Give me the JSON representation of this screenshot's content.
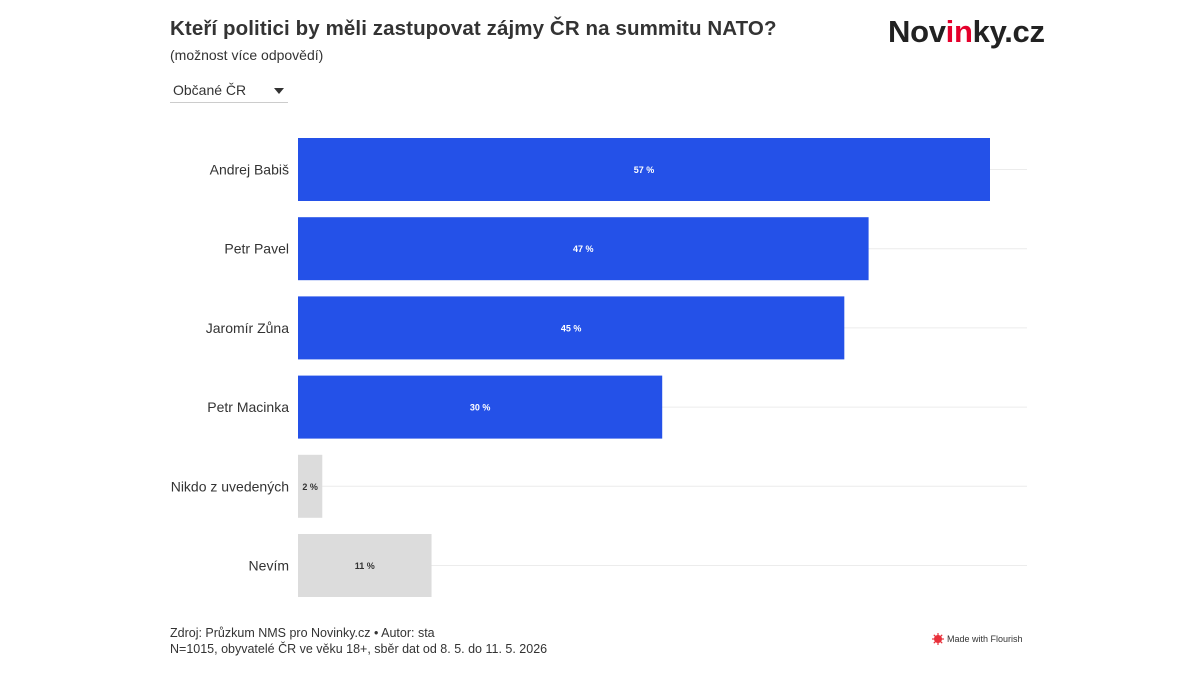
{
  "header": {
    "title": "Kteří politici by měli zastupovat zájmy ČR na summitu NATO?",
    "subtitle": "(možnost více odpovědí)",
    "logo_prefix": "Nov",
    "logo_accent": "in",
    "logo_suffix": "ky.cz"
  },
  "filter": {
    "selected": "Občané ČR"
  },
  "chart_data": {
    "type": "bar",
    "orientation": "horizontal",
    "categories": [
      "Andrej Babiš",
      "Petr Pavel",
      "Jaromír Zůna",
      "Petr Macinka",
      "Nikdo z uvedených",
      "Nevím"
    ],
    "values": [
      57,
      47,
      45,
      30,
      2,
      11
    ],
    "value_labels": [
      "57 %",
      "47 %",
      "45 %",
      "30 %",
      "2 %",
      "11 %"
    ],
    "bar_colors": [
      "#2451e8",
      "#2451e8",
      "#2451e8",
      "#2451e8",
      "#dcdcdc",
      "#dcdcdc"
    ],
    "label_colors": [
      "#ffffff",
      "#ffffff",
      "#ffffff",
      "#ffffff",
      "#333333",
      "#333333"
    ],
    "xlim": [
      0,
      60
    ],
    "grid": true
  },
  "footer": {
    "source_line1": "Zdroj: Průzkum NMS pro Novinky.cz • Autor: sta",
    "source_line2": "N=1015, obyvatelé ČR ve věku 18+, sběr dat od 8. 5. do 11. 5. 2026",
    "flourish_label": "Made with Flourish"
  },
  "colors": {
    "accent": "#2451e8",
    "muted": "#dcdcdc",
    "logo_accent": "#e4002b"
  }
}
